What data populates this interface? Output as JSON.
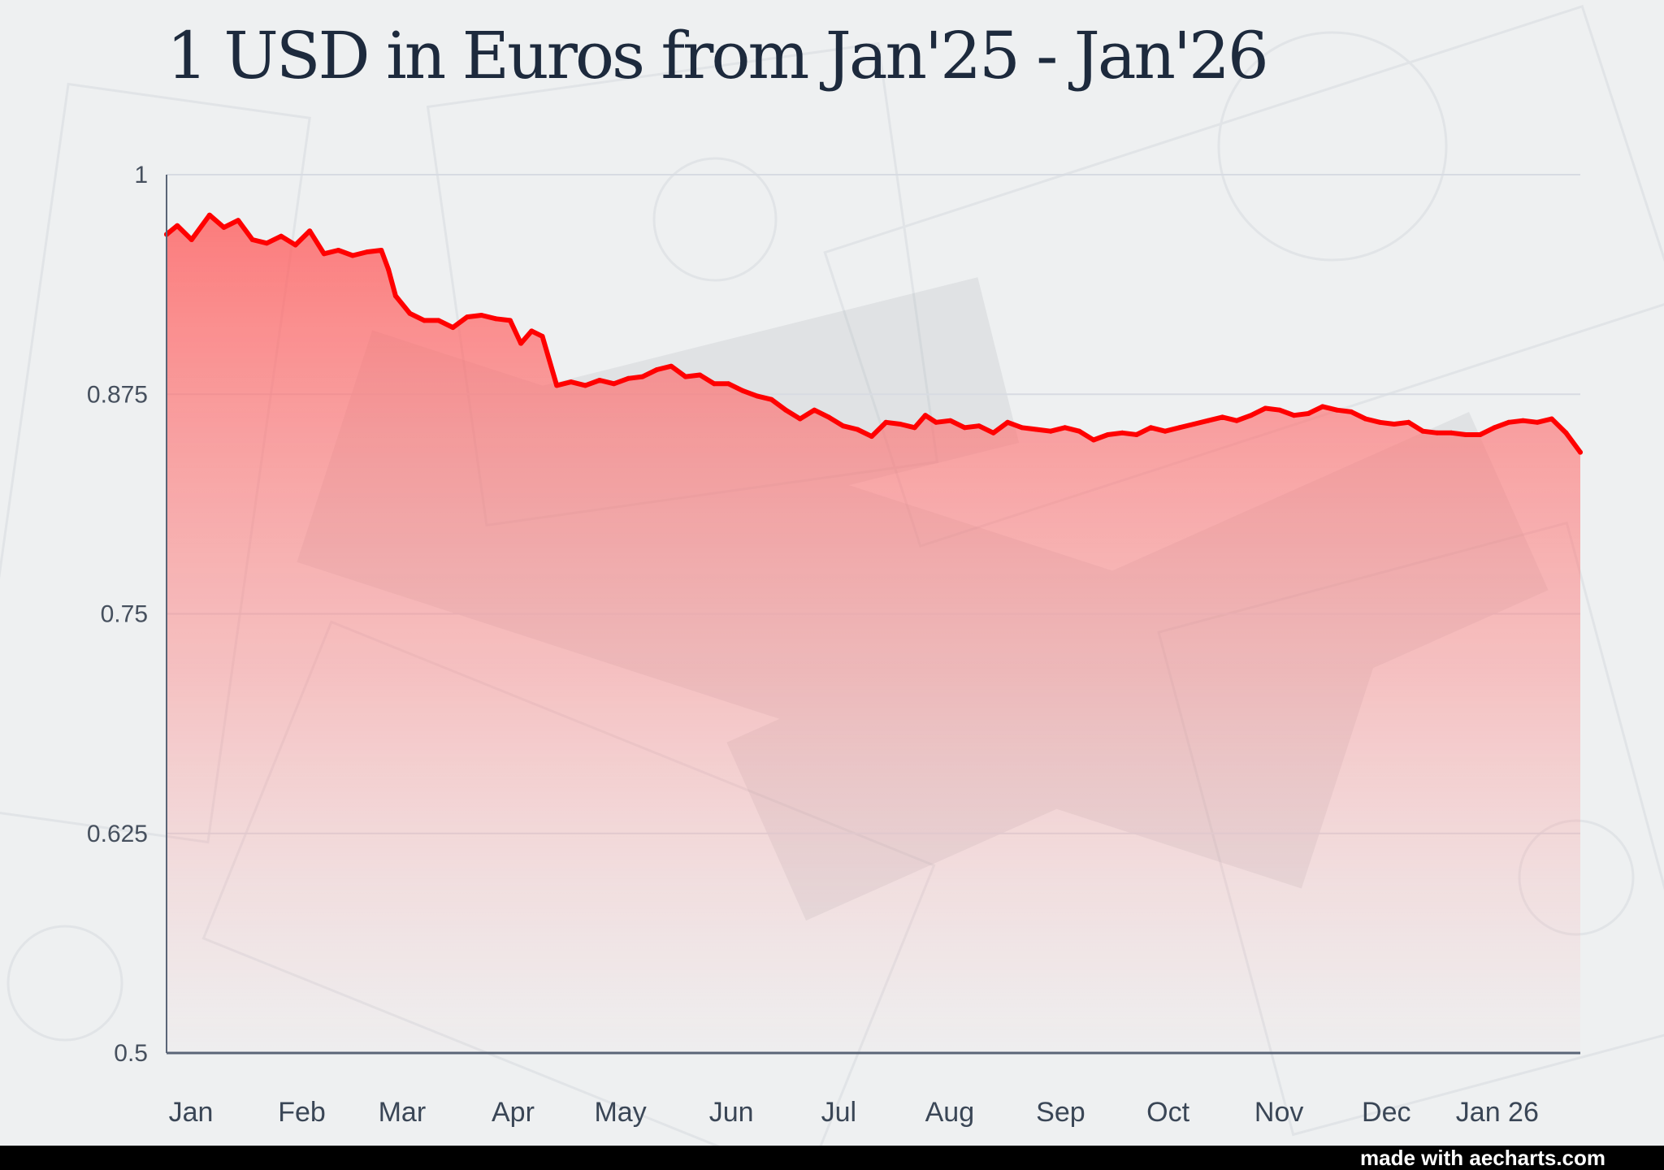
{
  "title": "1 USD in Euros from Jan'25 - Jan'26",
  "footer": {
    "credit": "made with aecharts.com"
  },
  "colors": {
    "line": "#ff0000",
    "area_top": "#ff5a5a",
    "axis": "#5a6577",
    "grid": "#d7dbe2",
    "title": "#1d2a3d"
  },
  "chart_data": {
    "type": "area",
    "ylim": [
      0.5,
      1
    ],
    "y_ticks": [
      "1",
      "0.875",
      "0.75",
      "0.625",
      "0.5"
    ],
    "x_ticks": [
      "Jan",
      "Feb",
      "Mar",
      "Apr",
      "May",
      "Jun",
      "Jul",
      "Aug",
      "Sep",
      "Oct",
      "Nov",
      "Dec",
      "Jan 26"
    ],
    "x_start": "2025-01-01",
    "x_end": "2026-01-31",
    "grid": true,
    "series": [
      {
        "points": [
          [
            "2025-01-01",
            0.966
          ],
          [
            "2025-01-04",
            0.971
          ],
          [
            "2025-01-08",
            0.963
          ],
          [
            "2025-01-13",
            0.977
          ],
          [
            "2025-01-17",
            0.97
          ],
          [
            "2025-01-21",
            0.974
          ],
          [
            "2025-01-25",
            0.963
          ],
          [
            "2025-01-29",
            0.961
          ],
          [
            "2025-02-02",
            0.965
          ],
          [
            "2025-02-06",
            0.96
          ],
          [
            "2025-02-10",
            0.968
          ],
          [
            "2025-02-14",
            0.955
          ],
          [
            "2025-02-18",
            0.957
          ],
          [
            "2025-02-22",
            0.954
          ],
          [
            "2025-02-26",
            0.956
          ],
          [
            "2025-03-02",
            0.957
          ],
          [
            "2025-03-04",
            0.946
          ],
          [
            "2025-03-06",
            0.931
          ],
          [
            "2025-03-10",
            0.921
          ],
          [
            "2025-03-14",
            0.917
          ],
          [
            "2025-03-18",
            0.917
          ],
          [
            "2025-03-22",
            0.913
          ],
          [
            "2025-03-26",
            0.919
          ],
          [
            "2025-03-30",
            0.92
          ],
          [
            "2025-04-03",
            0.918
          ],
          [
            "2025-04-07",
            0.917
          ],
          [
            "2025-04-10",
            0.904
          ],
          [
            "2025-04-13",
            0.911
          ],
          [
            "2025-04-16",
            0.908
          ],
          [
            "2025-04-20",
            0.88
          ],
          [
            "2025-04-24",
            0.882
          ],
          [
            "2025-04-28",
            0.88
          ],
          [
            "2025-05-02",
            0.883
          ],
          [
            "2025-05-06",
            0.881
          ],
          [
            "2025-05-10",
            0.884
          ],
          [
            "2025-05-14",
            0.885
          ],
          [
            "2025-05-18",
            0.889
          ],
          [
            "2025-05-22",
            0.891
          ],
          [
            "2025-05-26",
            0.885
          ],
          [
            "2025-05-30",
            0.886
          ],
          [
            "2025-06-03",
            0.881
          ],
          [
            "2025-06-07",
            0.881
          ],
          [
            "2025-06-11",
            0.877
          ],
          [
            "2025-06-15",
            0.874
          ],
          [
            "2025-06-19",
            0.872
          ],
          [
            "2025-06-23",
            0.866
          ],
          [
            "2025-06-27",
            0.861
          ],
          [
            "2025-07-01",
            0.866
          ],
          [
            "2025-07-05",
            0.862
          ],
          [
            "2025-07-09",
            0.857
          ],
          [
            "2025-07-13",
            0.855
          ],
          [
            "2025-07-17",
            0.851
          ],
          [
            "2025-07-21",
            0.859
          ],
          [
            "2025-07-25",
            0.858
          ],
          [
            "2025-07-29",
            0.856
          ],
          [
            "2025-08-01",
            0.863
          ],
          [
            "2025-08-04",
            0.859
          ],
          [
            "2025-08-08",
            0.86
          ],
          [
            "2025-08-12",
            0.856
          ],
          [
            "2025-08-16",
            0.857
          ],
          [
            "2025-08-20",
            0.853
          ],
          [
            "2025-08-24",
            0.859
          ],
          [
            "2025-08-28",
            0.856
          ],
          [
            "2025-09-01",
            0.855
          ],
          [
            "2025-09-05",
            0.854
          ],
          [
            "2025-09-09",
            0.856
          ],
          [
            "2025-09-13",
            0.854
          ],
          [
            "2025-09-17",
            0.849
          ],
          [
            "2025-09-21",
            0.852
          ],
          [
            "2025-09-25",
            0.853
          ],
          [
            "2025-09-29",
            0.852
          ],
          [
            "2025-10-03",
            0.856
          ],
          [
            "2025-10-07",
            0.854
          ],
          [
            "2025-10-11",
            0.856
          ],
          [
            "2025-10-15",
            0.858
          ],
          [
            "2025-10-19",
            0.86
          ],
          [
            "2025-10-23",
            0.862
          ],
          [
            "2025-10-27",
            0.86
          ],
          [
            "2025-10-31",
            0.863
          ],
          [
            "2025-11-04",
            0.867
          ],
          [
            "2025-11-08",
            0.866
          ],
          [
            "2025-11-12",
            0.863
          ],
          [
            "2025-11-16",
            0.864
          ],
          [
            "2025-11-20",
            0.868
          ],
          [
            "2025-11-24",
            0.866
          ],
          [
            "2025-11-28",
            0.865
          ],
          [
            "2025-12-02",
            0.861
          ],
          [
            "2025-12-06",
            0.859
          ],
          [
            "2025-12-10",
            0.858
          ],
          [
            "2025-12-14",
            0.859
          ],
          [
            "2025-12-18",
            0.854
          ],
          [
            "2025-12-22",
            0.853
          ],
          [
            "2025-12-26",
            0.853
          ],
          [
            "2025-12-30",
            0.852
          ],
          [
            "2026-01-03",
            0.852
          ],
          [
            "2026-01-07",
            0.856
          ],
          [
            "2026-01-11",
            0.859
          ],
          [
            "2026-01-15",
            0.86
          ],
          [
            "2026-01-19",
            0.859
          ],
          [
            "2026-01-23",
            0.861
          ],
          [
            "2026-01-27",
            0.853
          ],
          [
            "2026-01-31",
            0.842
          ]
        ]
      }
    ]
  }
}
